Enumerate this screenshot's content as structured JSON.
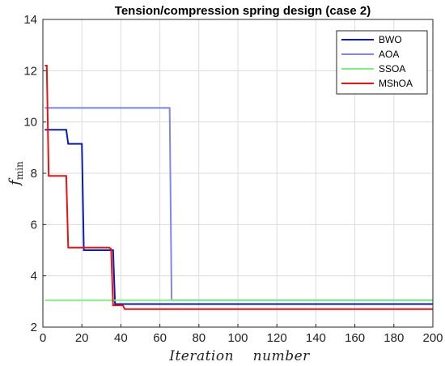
{
  "chart_data": {
    "type": "line",
    "title": "Tension/compression spring design (case 2)",
    "xlabel": "Iteration    number",
    "ylabel": "f",
    "ylabel_sub": "min",
    "xlim": [
      0,
      200
    ],
    "ylim": [
      2,
      14
    ],
    "xticks": [
      0,
      20,
      40,
      60,
      80,
      100,
      120,
      140,
      160,
      180,
      200
    ],
    "yticks": [
      2,
      4,
      6,
      8,
      10,
      12,
      14
    ],
    "grid": true,
    "legend_position": "top-right",
    "series": [
      {
        "name": "BWO",
        "color": "#0a1bb8",
        "x": [
          1,
          12,
          13,
          20,
          21,
          35,
          36,
          37,
          200
        ],
        "y": [
          9.7,
          9.7,
          9.15,
          9.15,
          5.0,
          5.0,
          5.0,
          2.9,
          2.9
        ]
      },
      {
        "name": "AOA",
        "color": "#7f86f2",
        "x": [
          1,
          65,
          66,
          200
        ],
        "y": [
          10.55,
          10.55,
          3.05,
          3.05
        ]
      },
      {
        "name": "SSOA",
        "color": "#7ff07f",
        "x": [
          1,
          200
        ],
        "y": [
          3.05,
          3.05
        ]
      },
      {
        "name": "MShOA",
        "color": "#ee1111",
        "x": [
          1,
          2,
          3,
          11,
          12,
          13,
          34,
          35,
          36,
          41,
          42,
          200
        ],
        "y": [
          12.2,
          12.2,
          7.9,
          7.9,
          7.9,
          5.1,
          5.1,
          5.05,
          2.85,
          2.85,
          2.7,
          2.7
        ]
      }
    ]
  }
}
